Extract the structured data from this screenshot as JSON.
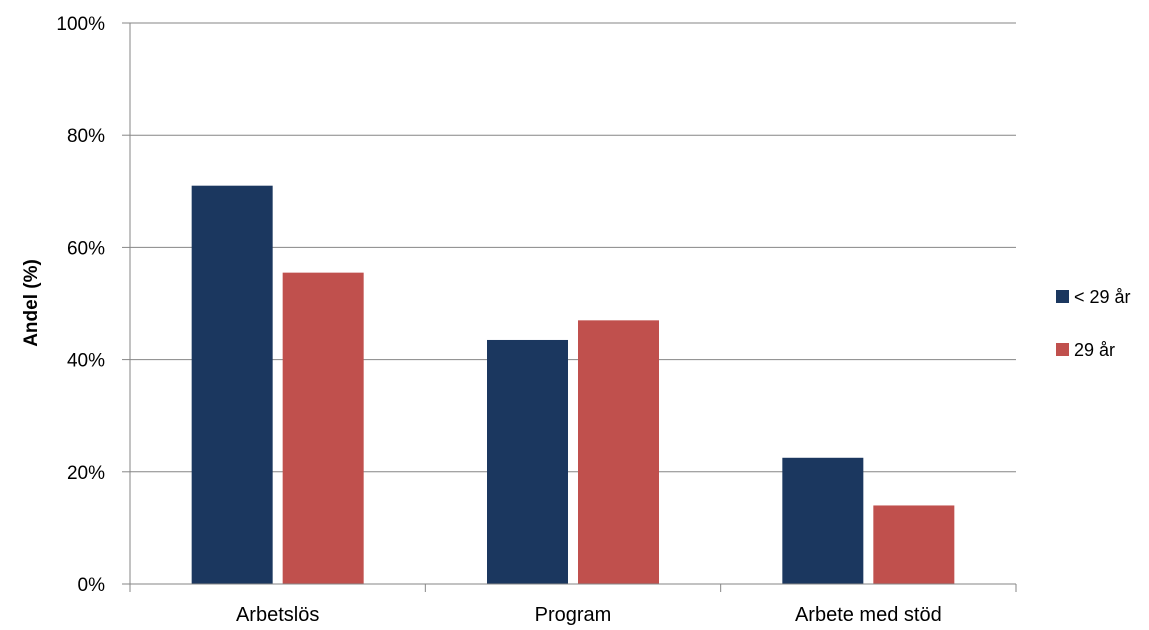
{
  "chart_data": {
    "type": "bar",
    "categories": [
      "Arbetslös",
      "Program",
      "Arbete med stöd"
    ],
    "series": [
      {
        "name": "< 29 år",
        "color": "#1b375f",
        "values": [
          71,
          43.5,
          22.5
        ]
      },
      {
        "name": "29 år",
        "color": "#c0504d",
        "values": [
          55.5,
          47,
          14
        ]
      }
    ],
    "title": "",
    "xlabel": "",
    "ylabel": "Andel (%)",
    "ylim": [
      0,
      100
    ],
    "yticks": [
      "0%",
      "20%",
      "40%",
      "60%",
      "80%",
      "100%"
    ],
    "ytick_values": [
      0,
      20,
      40,
      60,
      80,
      100
    ],
    "grid": true,
    "legend_position": "right"
  }
}
